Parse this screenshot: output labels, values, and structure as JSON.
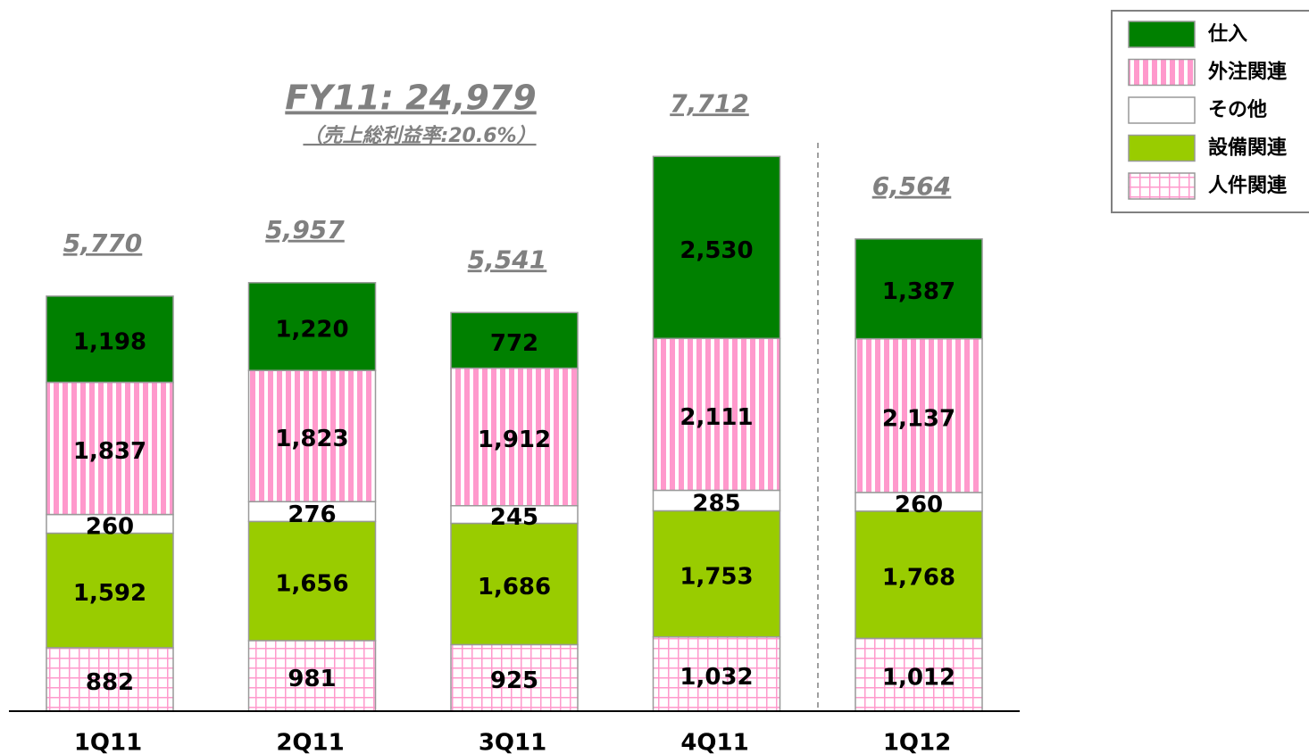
{
  "chart_data": {
    "type": "stacked_bar",
    "annotation": "FY11: 24,979",
    "annotation_sub": "（売上総利益率:20.6%）",
    "categories": [
      "1Q11",
      "2Q11",
      "3Q11",
      "4Q11",
      "1Q12"
    ],
    "total_labels": [
      "5,770",
      "5,957",
      "5,541",
      "7,712",
      "6,564"
    ],
    "ylim": [
      0,
      8000
    ],
    "legend": "top-right",
    "series": [
      {
        "name": "人件関連",
        "color": "#ff99cc",
        "pattern": "grid",
        "values": [
          882,
          981,
          925,
          1032,
          1012
        ],
        "value_labels": [
          "882",
          "981",
          "925",
          "1,032",
          "1,012"
        ]
      },
      {
        "name": "設備関連",
        "color": "#99cc00",
        "pattern": "solid",
        "values": [
          1592,
          1656,
          1686,
          1753,
          1768
        ],
        "value_labels": [
          "1,592",
          "1,656",
          "1,686",
          "1,753",
          "1,768"
        ]
      },
      {
        "name": "その他",
        "color": "#ffffff",
        "pattern": "solid",
        "values": [
          260,
          276,
          245,
          285,
          260
        ],
        "value_labels": [
          "260",
          "276",
          "245",
          "285",
          "260"
        ]
      },
      {
        "name": "外注関連",
        "color": "#ff99cc",
        "pattern": "stripes",
        "values": [
          1837,
          1823,
          1912,
          2111,
          2137
        ],
        "value_labels": [
          "1,837",
          "1,823",
          "1,912",
          "2,111",
          "2,137"
        ]
      },
      {
        "name": "仕入",
        "color": "#008000",
        "pattern": "solid",
        "values": [
          1198,
          1220,
          772,
          2530,
          1387
        ],
        "value_labels": [
          "1,198",
          "1,220",
          "772",
          "2,530",
          "1,387"
        ]
      }
    ]
  }
}
